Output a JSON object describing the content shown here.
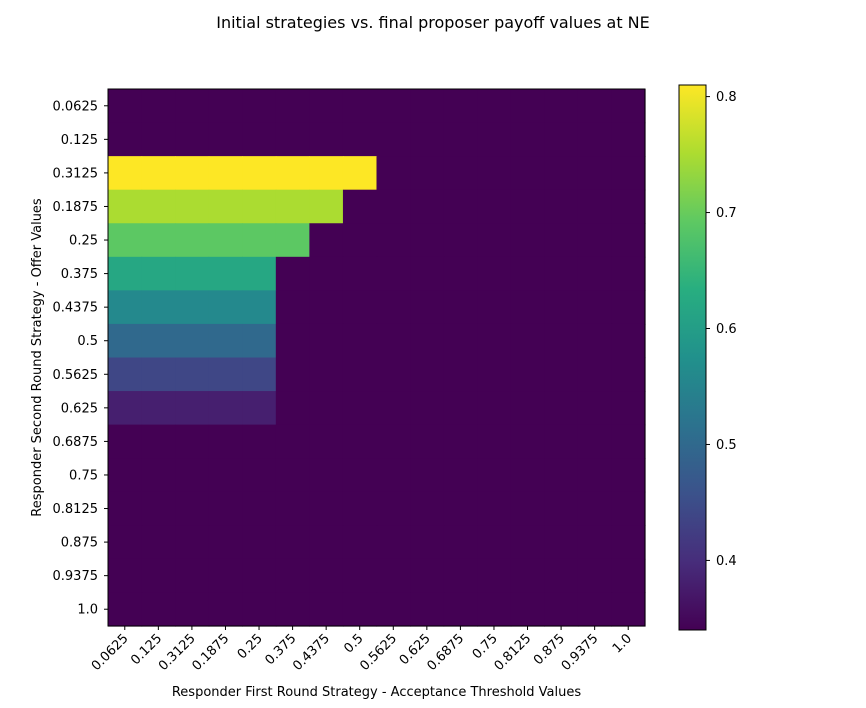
{
  "chart_data": {
    "type": "heatmap",
    "title": "Initial strategies vs. final proposer payoff values at NE",
    "xlabel": "Responder First Round Strategy - Acceptance Threshold Values",
    "ylabel": "Responder Second Round Strategy - Offer Values",
    "x_categories": [
      "0.0625",
      "0.125",
      "0.3125",
      "0.1875",
      "0.25",
      "0.375",
      "0.4375",
      "0.5",
      "0.5625",
      "0.625",
      "0.6875",
      "0.75",
      "0.8125",
      "0.875",
      "0.9375",
      "1.0"
    ],
    "y_categories": [
      "0.0625",
      "0.125",
      "0.3125",
      "0.1875",
      "0.25",
      "0.375",
      "0.4375",
      "0.5",
      "0.5625",
      "0.625",
      "0.6875",
      "0.75",
      "0.8125",
      "0.875",
      "0.9375",
      "1.0"
    ],
    "values": [
      [
        0.34,
        0.34,
        0.34,
        0.34,
        0.34,
        0.34,
        0.34,
        0.34,
        0.34,
        0.34,
        0.34,
        0.34,
        0.34,
        0.34,
        0.34,
        0.34
      ],
      [
        0.34,
        0.34,
        0.34,
        0.34,
        0.34,
        0.34,
        0.34,
        0.34,
        0.34,
        0.34,
        0.34,
        0.34,
        0.34,
        0.34,
        0.34,
        0.34
      ],
      [
        0.81,
        0.81,
        0.81,
        0.81,
        0.81,
        0.81,
        0.81,
        0.81,
        0.34,
        0.34,
        0.34,
        0.34,
        0.34,
        0.34,
        0.34,
        0.34
      ],
      [
        0.75,
        0.75,
        0.75,
        0.75,
        0.75,
        0.75,
        0.75,
        0.34,
        0.34,
        0.34,
        0.34,
        0.34,
        0.34,
        0.34,
        0.34,
        0.34
      ],
      [
        0.69,
        0.69,
        0.69,
        0.69,
        0.69,
        0.69,
        0.34,
        0.34,
        0.34,
        0.34,
        0.34,
        0.34,
        0.34,
        0.34,
        0.34,
        0.34
      ],
      [
        0.62,
        0.62,
        0.62,
        0.62,
        0.62,
        0.34,
        0.34,
        0.34,
        0.34,
        0.34,
        0.34,
        0.34,
        0.34,
        0.34,
        0.34,
        0.34
      ],
      [
        0.56,
        0.56,
        0.56,
        0.56,
        0.56,
        0.34,
        0.34,
        0.34,
        0.34,
        0.34,
        0.34,
        0.34,
        0.34,
        0.34,
        0.34,
        0.34
      ],
      [
        0.5,
        0.5,
        0.5,
        0.5,
        0.5,
        0.34,
        0.34,
        0.34,
        0.34,
        0.34,
        0.34,
        0.34,
        0.34,
        0.34,
        0.34,
        0.34
      ],
      [
        0.44,
        0.44,
        0.44,
        0.44,
        0.44,
        0.34,
        0.34,
        0.34,
        0.34,
        0.34,
        0.34,
        0.34,
        0.34,
        0.34,
        0.34,
        0.34
      ],
      [
        0.38,
        0.38,
        0.38,
        0.38,
        0.38,
        0.34,
        0.34,
        0.34,
        0.34,
        0.34,
        0.34,
        0.34,
        0.34,
        0.34,
        0.34,
        0.34
      ],
      [
        0.34,
        0.34,
        0.34,
        0.34,
        0.34,
        0.34,
        0.34,
        0.34,
        0.34,
        0.34,
        0.34,
        0.34,
        0.34,
        0.34,
        0.34,
        0.34
      ],
      [
        0.34,
        0.34,
        0.34,
        0.34,
        0.34,
        0.34,
        0.34,
        0.34,
        0.34,
        0.34,
        0.34,
        0.34,
        0.34,
        0.34,
        0.34,
        0.34
      ],
      [
        0.34,
        0.34,
        0.34,
        0.34,
        0.34,
        0.34,
        0.34,
        0.34,
        0.34,
        0.34,
        0.34,
        0.34,
        0.34,
        0.34,
        0.34,
        0.34
      ],
      [
        0.34,
        0.34,
        0.34,
        0.34,
        0.34,
        0.34,
        0.34,
        0.34,
        0.34,
        0.34,
        0.34,
        0.34,
        0.34,
        0.34,
        0.34,
        0.34
      ],
      [
        0.34,
        0.34,
        0.34,
        0.34,
        0.34,
        0.34,
        0.34,
        0.34,
        0.34,
        0.34,
        0.34,
        0.34,
        0.34,
        0.34,
        0.34,
        0.34
      ],
      [
        0.34,
        0.34,
        0.34,
        0.34,
        0.34,
        0.34,
        0.34,
        0.34,
        0.34,
        0.34,
        0.34,
        0.34,
        0.34,
        0.34,
        0.34,
        0.34
      ]
    ],
    "colorbar": {
      "colormap": "viridis",
      "vmin": 0.34,
      "vmax": 0.81,
      "ticks": [
        0.4,
        0.5,
        0.6,
        0.7,
        0.8
      ],
      "tick_labels": [
        "0.4",
        "0.5",
        "0.6",
        "0.7",
        "0.8"
      ]
    }
  }
}
